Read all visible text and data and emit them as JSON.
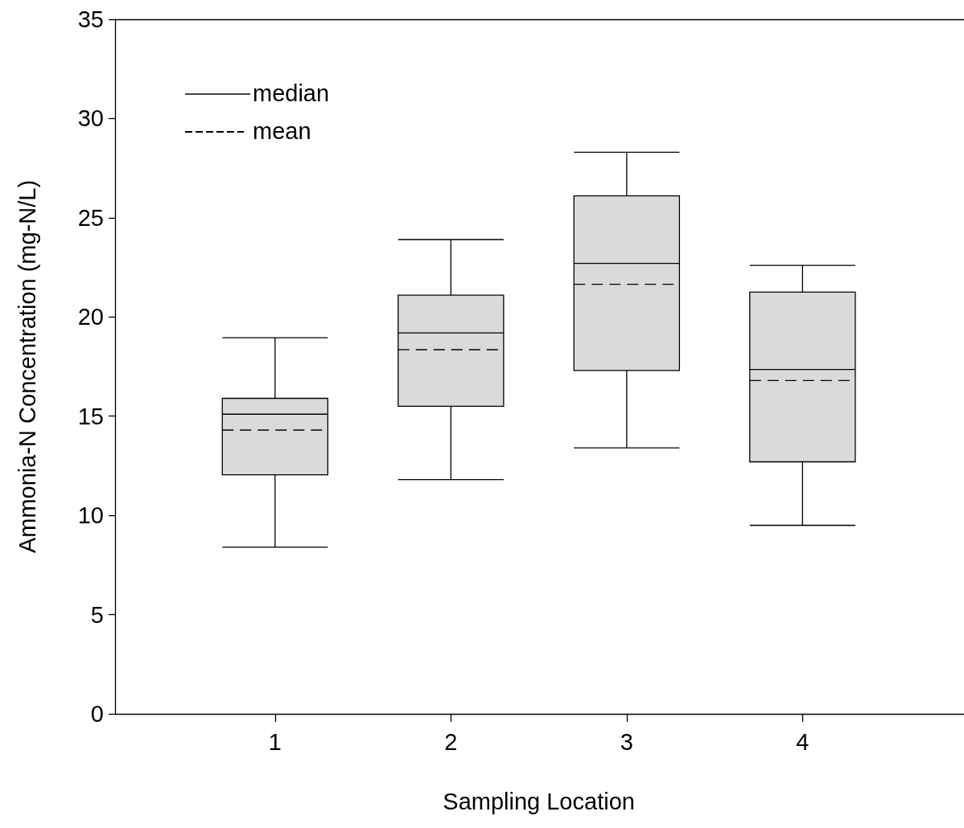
{
  "chart_data": {
    "type": "box",
    "xlabel": "Sampling Location",
    "ylabel": "Ammonia-N Concentration (mg-N/L)",
    "categories": [
      "1",
      "2",
      "3",
      "4"
    ],
    "boxes": [
      {
        "low": 8.4,
        "q1": 12.05,
        "median": 15.1,
        "q3": 15.9,
        "high": 18.95,
        "mean": 14.3
      },
      {
        "low": 11.8,
        "q1": 15.5,
        "median": 19.2,
        "q3": 21.1,
        "high": 23.9,
        "mean": 18.35
      },
      {
        "low": 13.4,
        "q1": 17.3,
        "median": 22.7,
        "q3": 26.1,
        "high": 28.3,
        "mean": 21.65
      },
      {
        "low": 9.5,
        "q1": 12.7,
        "median": 17.35,
        "q3": 21.25,
        "high": 22.6,
        "mean": 16.8
      }
    ],
    "color": "#dadada",
    "ylim": [
      0,
      35
    ],
    "yticks": [
      0,
      5,
      10,
      15,
      20,
      25,
      30,
      35
    ],
    "annotations": [
      "median",
      "mean"
    ],
    "grid": false
  }
}
